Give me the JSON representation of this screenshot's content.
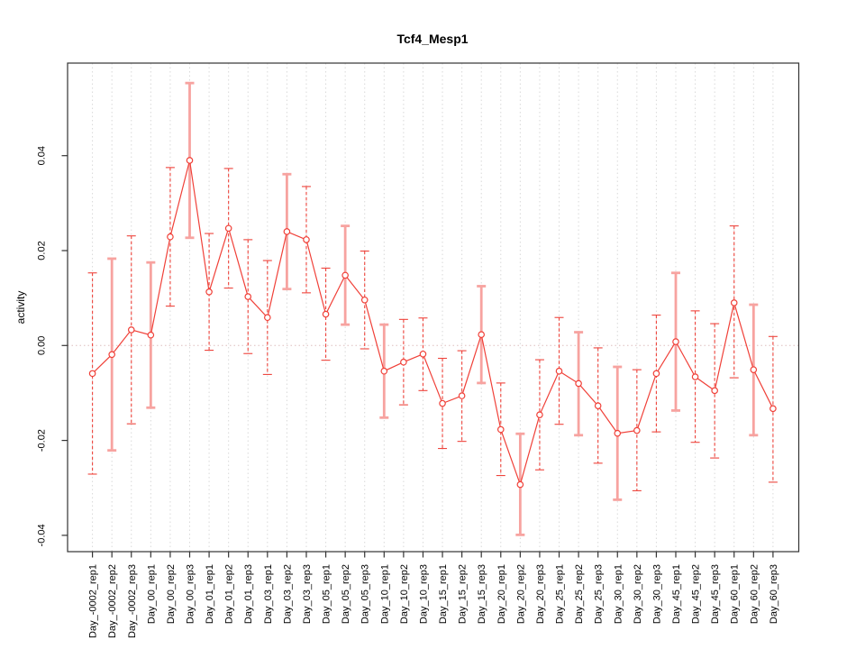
{
  "chart_data": {
    "type": "scatter",
    "title": "Tcf4_Mesp1",
    "xlabel": "",
    "ylabel": "activity",
    "ylim": [
      -0.0435,
      0.0596
    ],
    "grid": "vertical-dotted",
    "legend": "none",
    "yticks": [
      {
        "value": 0.04,
        "label": "0.04"
      },
      {
        "value": 0.02,
        "label": "0.02"
      },
      {
        "value": 0.0,
        "label": "0.00"
      },
      {
        "value": -0.02,
        "label": "-0.02"
      },
      {
        "value": -0.04,
        "label": "-0.04"
      }
    ],
    "zero_reference_line": 0.0,
    "categories": [
      "Day_-0002_rep1",
      "Day_-0002_rep2",
      "Day_-0002_rep3",
      "Day_00_rep1",
      "Day_00_rep2",
      "Day_00_rep3",
      "Day_01_rep1",
      "Day_01_rep2",
      "Day_01_rep3",
      "Day_03_rep1",
      "Day_03_rep2",
      "Day_03_rep3",
      "Day_05_rep1",
      "Day_05_rep2",
      "Day_05_rep3",
      "Day_10_rep1",
      "Day_10_rep2",
      "Day_10_rep3",
      "Day_15_rep1",
      "Day_15_rep2",
      "Day_15_rep3",
      "Day_20_rep1",
      "Day_20_rep2",
      "Day_20_rep3",
      "Day_25_rep1",
      "Day_25_rep2",
      "Day_25_rep3",
      "Day_30_rep1",
      "Day_30_rep2",
      "Day_30_rep3",
      "Day_45_rep1",
      "Day_45_rep2",
      "Day_45_rep3",
      "Day_60_rep1",
      "Day_60_rep2",
      "Day_60_rep3"
    ],
    "series": [
      {
        "name": "activity",
        "values": [
          -0.0059,
          -0.0019,
          0.0033,
          0.0022,
          0.0229,
          0.039,
          0.0113,
          0.0247,
          0.0103,
          0.0059,
          0.024,
          0.0223,
          0.0066,
          0.0148,
          0.0096,
          -0.0054,
          -0.0035,
          -0.0018,
          -0.0122,
          -0.0106,
          0.0023,
          -0.0177,
          -0.0293,
          -0.0146,
          -0.0054,
          -0.008,
          -0.0127,
          -0.0185,
          -0.0179,
          -0.0059,
          0.0008,
          -0.0066,
          -0.0095,
          0.009,
          -0.0051,
          -0.0133
        ],
        "bar_high": [
          0.0153,
          0.0183,
          0.0231,
          0.0175,
          0.0375,
          0.0553,
          0.0236,
          0.0373,
          0.0223,
          0.0179,
          0.0361,
          0.0335,
          0.0163,
          0.0252,
          0.0199,
          0.0044,
          0.0055,
          0.0058,
          -0.0027,
          -0.0011,
          0.0125,
          -0.0079,
          -0.0186,
          -0.003,
          0.0059,
          0.0028,
          -0.0005,
          -0.0045,
          -0.0051,
          0.0064,
          0.0153,
          0.0073,
          0.0046,
          0.0252,
          0.0086,
          0.0019
        ],
        "bar_low": [
          -0.0271,
          -0.0221,
          -0.0165,
          -0.0131,
          0.0083,
          0.0227,
          -0.001,
          0.0121,
          -0.0017,
          -0.0061,
          0.0119,
          0.0111,
          -0.0031,
          0.0044,
          -0.0007,
          -0.0152,
          -0.0125,
          -0.0095,
          -0.0217,
          -0.0202,
          -0.0079,
          -0.0274,
          -0.0399,
          -0.0262,
          -0.0166,
          -0.0189,
          -0.0248,
          -0.0325,
          -0.0306,
          -0.0182,
          -0.0137,
          -0.0204,
          -0.0237,
          -0.0068,
          -0.0189,
          -0.0288
        ],
        "bar_styles": [
          "dashed",
          "solid",
          "dashed",
          "solid",
          "dashed",
          "solid",
          "dashed",
          "dashed",
          "dashed",
          "dashed",
          "solid",
          "dashed",
          "dashed",
          "solid",
          "dashed",
          "solid",
          "dashed",
          "dashed",
          "dashed",
          "dashed",
          "solid",
          "dashed",
          "solid",
          "dashed",
          "dashed",
          "solid",
          "dashed",
          "solid",
          "dashed",
          "dashed",
          "solid",
          "dashed",
          "dashed",
          "dashed",
          "solid",
          "dashed"
        ]
      }
    ],
    "colors": {
      "point_line": "#f04038",
      "error_bar_dashed": "#ee443c",
      "error_bar_solid": "#f7a3a0",
      "zero_line": "#ddbdbd",
      "gridline": "#d9d9d9",
      "axis": "#333333",
      "text": "#000000",
      "background": "#ffffff"
    }
  }
}
